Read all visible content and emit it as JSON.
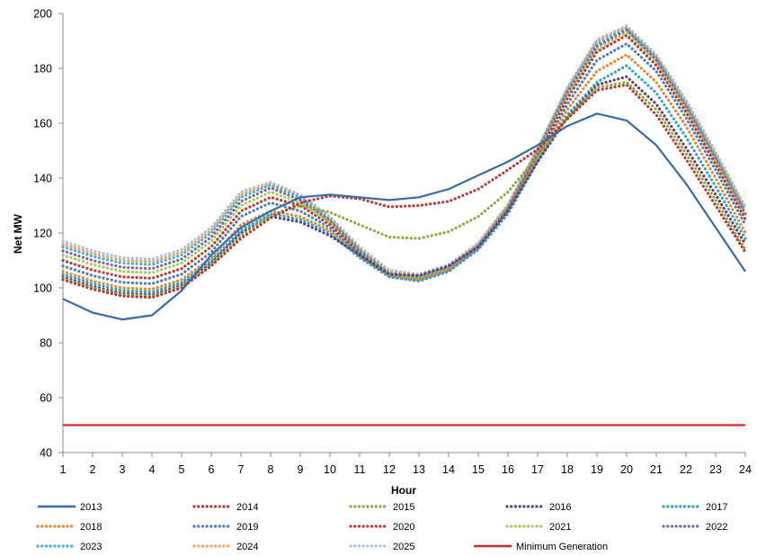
{
  "chart_data": {
    "type": "line",
    "title": "",
    "xlabel": "Hour",
    "ylabel": "Net MW",
    "x": [
      1,
      2,
      3,
      4,
      5,
      6,
      7,
      8,
      9,
      10,
      11,
      12,
      13,
      14,
      15,
      16,
      17,
      18,
      19,
      20,
      21,
      22,
      23,
      24
    ],
    "xlim": [
      1,
      24
    ],
    "ylim": [
      40,
      200
    ],
    "yticks": [
      40,
      60,
      80,
      100,
      120,
      140,
      160,
      180,
      200
    ],
    "grid": false,
    "legend_position": "bottom",
    "series": [
      {
        "name": "2013",
        "color": "#3a6aa7",
        "style": "solid",
        "values": [
          96,
          91,
          88.5,
          90,
          99,
          112,
          122,
          128,
          133,
          134,
          133,
          132,
          133,
          136,
          141,
          146,
          152,
          159,
          163.5,
          161,
          152,
          138,
          122,
          106
        ]
      },
      {
        "name": "2014",
        "color": "#b43b3b",
        "style": "dotted",
        "values": [
          103,
          99.5,
          97,
          96.5,
          100,
          108,
          118,
          125.5,
          131,
          133.5,
          132.5,
          129.5,
          130,
          131.5,
          136,
          143,
          150.5,
          161.5,
          172,
          174,
          163,
          147,
          130,
          113
        ]
      },
      {
        "name": "2015",
        "color": "#8ea93c",
        "style": "dotted",
        "values": [
          103.5,
          100,
          97.5,
          97,
          100.5,
          108.5,
          119,
          126.5,
          130,
          127.5,
          123,
          118.5,
          118,
          120.5,
          126,
          135,
          148,
          162,
          173,
          175,
          165,
          149,
          132,
          114
        ]
      },
      {
        "name": "2016",
        "color": "#5c3f80",
        "style": "dotted",
        "values": [
          104,
          100.5,
          98,
          97.5,
          101,
          109,
          120,
          126,
          124,
          119,
          112,
          105,
          104.5,
          108,
          115,
          128,
          146,
          162,
          174,
          177,
          167,
          151,
          134,
          116
        ]
      },
      {
        "name": "2017",
        "color": "#2fa5c3",
        "style": "dotted",
        "values": [
          105,
          101.5,
          99,
          98.5,
          102,
          110,
          121,
          127,
          125,
          120,
          111,
          104,
          102.5,
          106,
          114,
          127,
          146,
          163,
          175,
          181,
          171,
          155,
          137,
          118
        ]
      },
      {
        "name": "2018",
        "color": "#e8862c",
        "style": "dotted",
        "values": [
          106,
          102.5,
          100,
          99.5,
          103,
          111,
          123,
          128,
          126,
          121,
          111.5,
          104.5,
          103,
          106.5,
          114.5,
          128,
          147,
          165,
          179,
          185,
          175,
          159,
          140,
          120
        ]
      },
      {
        "name": "2019",
        "color": "#4a7cc2",
        "style": "dotted",
        "values": [
          108,
          104.5,
          102,
          101.5,
          105,
          113,
          126,
          131,
          128,
          122,
          112,
          104,
          102.5,
          106,
          114,
          128,
          147,
          167,
          183,
          189,
          179,
          162,
          143,
          123
        ]
      },
      {
        "name": "2020",
        "color": "#c0392b",
        "style": "dotted",
        "values": [
          110,
          106.5,
          104,
          103.5,
          107,
          115,
          128,
          133,
          130,
          123,
          112.5,
          104.5,
          103,
          106.5,
          114.5,
          128.5,
          148,
          169,
          186,
          192,
          181,
          164,
          145,
          125
        ]
      },
      {
        "name": "2021",
        "color": "#a3c95a",
        "style": "dotted",
        "values": [
          112,
          108.5,
          106,
          105.5,
          109,
          117,
          130,
          135,
          131,
          124,
          113,
          105,
          103.5,
          107,
          115,
          129,
          149,
          170,
          187,
          193,
          182,
          165,
          146,
          126
        ]
      },
      {
        "name": "2022",
        "color": "#8064a2",
        "style": "dotted",
        "values": [
          113.5,
          110,
          107.5,
          107,
          110.5,
          118.5,
          131.5,
          136.5,
          132,
          124.5,
          113.5,
          105,
          103.5,
          107,
          115,
          129,
          149.5,
          171,
          188,
          194,
          183,
          166,
          147,
          127
        ]
      },
      {
        "name": "2023",
        "color": "#45b2d9",
        "style": "dotted",
        "values": [
          115,
          111.5,
          109,
          108.5,
          112,
          120,
          133,
          137.5,
          133,
          125,
          114,
          105.5,
          104,
          107.5,
          115.5,
          129.5,
          150,
          172,
          189,
          194.5,
          184,
          167,
          148,
          128
        ]
      },
      {
        "name": "2024",
        "color": "#f2a25a",
        "style": "dotted",
        "values": [
          116,
          112.5,
          110,
          109.5,
          113,
          121,
          134,
          138,
          133.5,
          125.5,
          114.5,
          106,
          104.5,
          108,
          116,
          130,
          150.5,
          172.5,
          190,
          195,
          184.5,
          168,
          149,
          129
        ]
      },
      {
        "name": "2025",
        "color": "#a8c1e0",
        "style": "dotted",
        "values": [
          117,
          113.5,
          111,
          110.5,
          114,
          122,
          135,
          138.5,
          134,
          126,
          115,
          106.5,
          105,
          108.5,
          116.5,
          130.5,
          151,
          173,
          190.5,
          195.5,
          185,
          168.5,
          149.5,
          129.5
        ]
      },
      {
        "name": "Minimum Generation",
        "color": "#d6262b",
        "style": "solid",
        "values": [
          50,
          50,
          50,
          50,
          50,
          50,
          50,
          50,
          50,
          50,
          50,
          50,
          50,
          50,
          50,
          50,
          50,
          50,
          50,
          50,
          50,
          50,
          50,
          50
        ]
      }
    ]
  }
}
